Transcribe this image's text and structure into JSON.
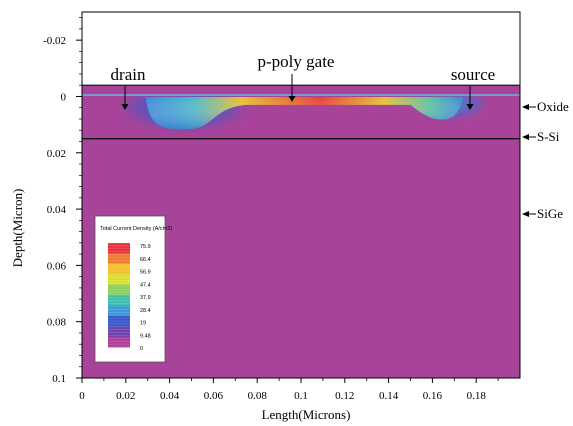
{
  "chart_data": {
    "type": "heatmap",
    "xlabel": "Length(Microns)",
    "ylabel": "Depth(Micron)",
    "xlim": [
      0,
      0.2
    ],
    "ylim": [
      -0.03,
      0.1
    ],
    "x_ticks": [
      "0",
      "0.02",
      "0.04",
      "0.06",
      "0.08",
      "0.1",
      "0.12",
      "0.14",
      "0.16",
      "0.18"
    ],
    "y_ticks": [
      "-0.02",
      "0",
      "0.02",
      "0.04",
      "0.06",
      "0.08",
      "0.1"
    ],
    "regions": [
      {
        "label": "drain",
        "x": [
          0,
          0.04
        ],
        "y": [
          -0.004,
          0
        ]
      },
      {
        "label": "p-poly gate",
        "x": [
          0.04,
          0.16
        ],
        "y": [
          -0.004,
          -0.001
        ]
      },
      {
        "label": "source",
        "x": [
          0.16,
          0.2
        ],
        "y": [
          -0.004,
          0
        ]
      }
    ],
    "layers": [
      {
        "label": "Oxide",
        "depth": -0.003
      },
      {
        "label": "S-Si",
        "depth": 0.007
      },
      {
        "label": "SiGe",
        "depth": 0.04
      }
    ],
    "interface_depth": 0.015,
    "legend": {
      "title": "Total Current Density (A/cm2)",
      "values": [
        "75.9",
        "66.4",
        "56.9",
        "47.4",
        "37.9",
        "28.4",
        "19",
        "9.48",
        "0"
      ],
      "colors": [
        "#e8323c",
        "#f07a32",
        "#f5c02c",
        "#d8e030",
        "#88d060",
        "#3ec0b0",
        "#3a9ad8",
        "#3658c8",
        "#6a44b0",
        "#b03c9a"
      ]
    },
    "background_color": "#a8439a"
  }
}
